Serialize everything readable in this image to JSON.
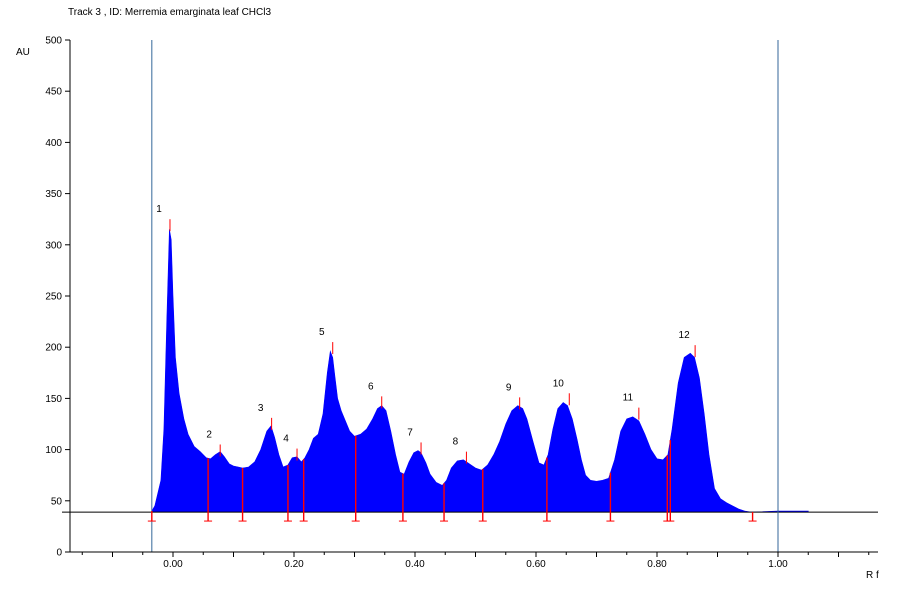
{
  "chart_data": {
    "type": "area",
    "title": "Track  3 , ID: Merremia emarginata leaf CHCl3",
    "xlabel": "R f",
    "ylabel": "AU",
    "xlim": [
      -0.17,
      1.17
    ],
    "ylim": [
      0,
      500
    ],
    "x_ticks": [
      0.0,
      0.2,
      0.4,
      0.6,
      0.8,
      1.0
    ],
    "x_tick_labels": [
      "0.00",
      "0.20",
      "0.40",
      "0.60",
      "0.80",
      "1.00"
    ],
    "y_ticks": [
      0,
      50,
      100,
      150,
      200,
      250,
      300,
      350,
      400,
      450,
      500
    ],
    "y_tick_labels": [
      "0",
      "50",
      "100",
      "150",
      "200",
      "250",
      "300",
      "350",
      "400",
      "450",
      "500"
    ],
    "baseline": 39,
    "start_line_rf": -0.035,
    "front_line_rf": 1.0,
    "colors": {
      "fill": "#0000ff",
      "marker": "#ff0000",
      "line": "#336699",
      "axis": "#000000"
    },
    "series": [
      {
        "x": [
          -0.035,
          -0.03,
          -0.02,
          -0.015,
          -0.01,
          -0.006,
          -0.003,
          0.0,
          0.004,
          0.01,
          0.018,
          0.025,
          0.035,
          0.045,
          0.055,
          0.062,
          0.07,
          0.078,
          0.085,
          0.093,
          0.1,
          0.108,
          0.115,
          0.125,
          0.135,
          0.145,
          0.155,
          0.162,
          0.168,
          0.175,
          0.182,
          0.19,
          0.197,
          0.205,
          0.212,
          0.218,
          0.225,
          0.232,
          0.24,
          0.248,
          0.255,
          0.26,
          0.264,
          0.268,
          0.272,
          0.278,
          0.285,
          0.292,
          0.3,
          0.31,
          0.32,
          0.33,
          0.338,
          0.345,
          0.352,
          0.36,
          0.368,
          0.375,
          0.382,
          0.39,
          0.398,
          0.405,
          0.41,
          0.418,
          0.425,
          0.435,
          0.445,
          0.452,
          0.46,
          0.47,
          0.48,
          0.49,
          0.5,
          0.51,
          0.52,
          0.53,
          0.54,
          0.55,
          0.56,
          0.57,
          0.578,
          0.585,
          0.595,
          0.605,
          0.613,
          0.62,
          0.628,
          0.636,
          0.645,
          0.652,
          0.66,
          0.668,
          0.675,
          0.682,
          0.69,
          0.7,
          0.71,
          0.72,
          0.73,
          0.74,
          0.75,
          0.76,
          0.77,
          0.78,
          0.79,
          0.8,
          0.81,
          0.818,
          0.825,
          0.835,
          0.845,
          0.855,
          0.862,
          0.87,
          0.878,
          0.886,
          0.895,
          0.905,
          0.915,
          0.925,
          0.935,
          0.945,
          0.955,
          0.96,
          1.0,
          1.05
        ],
        "y": [
          40,
          45,
          70,
          120,
          230,
          315,
          305,
          250,
          190,
          155,
          130,
          115,
          103,
          98,
          92,
          91,
          95,
          98,
          93,
          86,
          84,
          83,
          82,
          83,
          88,
          100,
          118,
          123,
          112,
          95,
          83,
          85,
          92,
          93,
          88,
          92,
          100,
          111,
          115,
          135,
          175,
          196,
          190,
          170,
          150,
          138,
          128,
          118,
          113,
          115,
          120,
          130,
          140,
          143,
          138,
          118,
          95,
          78,
          76,
          88,
          97,
          99,
          97,
          87,
          76,
          68,
          65,
          70,
          82,
          89,
          90,
          86,
          82,
          80,
          85,
          95,
          108,
          125,
          138,
          143,
          140,
          130,
          108,
          87,
          85,
          95,
          120,
          140,
          146,
          143,
          130,
          110,
          90,
          75,
          70,
          69,
          70,
          72,
          90,
          118,
          130,
          132,
          128,
          115,
          100,
          91,
          90,
          95,
          120,
          165,
          190,
          194,
          190,
          170,
          135,
          95,
          62,
          52,
          48,
          45,
          42,
          40,
          39,
          39,
          40,
          40
        ]
      }
    ],
    "peaks": [
      {
        "label": "1",
        "rf": -0.005,
        "height": 325
      },
      {
        "label": "2",
        "rf": 0.078,
        "height": 105
      },
      {
        "label": "3",
        "rf": 0.163,
        "height": 131
      },
      {
        "label": "4",
        "rf": 0.205,
        "height": 101
      },
      {
        "label": "5",
        "rf": 0.264,
        "height": 205
      },
      {
        "label": "6",
        "rf": 0.345,
        "height": 152
      },
      {
        "label": "7",
        "rf": 0.41,
        "height": 107
      },
      {
        "label": "8",
        "rf": 0.485,
        "height": 98
      },
      {
        "label": "9",
        "rf": 0.573,
        "height": 151
      },
      {
        "label": "10",
        "rf": 0.655,
        "height": 155
      },
      {
        "label": "11",
        "rf": 0.77,
        "height": 141
      },
      {
        "label": "12",
        "rf": 0.863,
        "height": 202
      }
    ],
    "boundaries_rf": [
      -0.035,
      0.058,
      0.115,
      0.19,
      0.216,
      0.302,
      0.38,
      0.448,
      0.512,
      0.618,
      0.723,
      0.817,
      0.822,
      0.958
    ]
  }
}
